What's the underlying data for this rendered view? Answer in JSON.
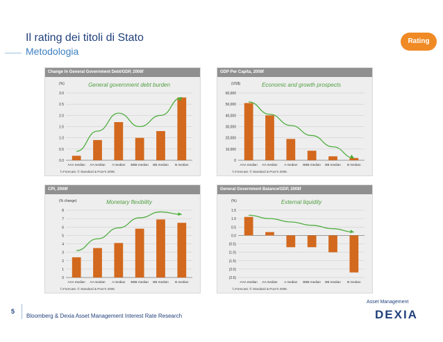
{
  "header": {
    "title": "Il rating dei titoli di Stato",
    "subtitle": "Metodologia",
    "badge": "Rating"
  },
  "footer": {
    "page_number": "5",
    "source": "Bloomberg & Dexia Asset Management Interest Rate Research",
    "logo_top": "Asset Management",
    "logo_main": "DEXIA"
  },
  "colors": {
    "bar": "#d2691e",
    "trend": "#4fae3f",
    "title": "#1f3f7a",
    "accent": "#f08a24"
  },
  "chart_data": [
    {
      "type": "bar",
      "title": "Change In General Government Debt/GDP, 2008f",
      "annotation": "General government debt burden",
      "ylabel": "(%)",
      "categories": [
        "AAA median",
        "AA median",
        "A median",
        "BBB median",
        "BB median",
        "B median"
      ],
      "values": [
        0.2,
        0.9,
        1.7,
        1.0,
        1.3,
        2.8
      ],
      "ylim": [
        0,
        3.0
      ],
      "ticks": [
        0.0,
        0.5,
        1.0,
        1.5,
        2.0,
        2.5,
        3.0
      ],
      "tick_labels": [
        "0.0",
        "0.5",
        "1.0",
        "1.5",
        "2.0",
        "2.5",
        "3.0"
      ],
      "trend": [
        0.4,
        1.3,
        2.1,
        1.5,
        2.0,
        2.8
      ],
      "note": "f=Forecast. © Standard & Poor's 2008."
    },
    {
      "type": "bar",
      "title": "GDP Per Capita, 2008f",
      "annotation": "Economic and growth prospects",
      "ylabel": "(US$)",
      "categories": [
        "AAA median",
        "AA median",
        "A median",
        "BBB median",
        "BB median",
        "B median"
      ],
      "values": [
        51000,
        40000,
        19000,
        8500,
        3500,
        2000
      ],
      "ylim": [
        0,
        60000
      ],
      "ticks": [
        0,
        10000,
        20000,
        30000,
        40000,
        50000,
        60000
      ],
      "tick_labels": [
        "0",
        "10,000",
        "20,000",
        "30,000",
        "40,000",
        "50,000",
        "60,000"
      ],
      "trend": [
        52000,
        41000,
        31000,
        22000,
        12000,
        2000
      ],
      "note": "f=Forecast. © Standard & Poor's 2008."
    },
    {
      "type": "bar",
      "title": "CPI, 2008f",
      "annotation": "Monetary flexibility",
      "ylabel": "(% change)",
      "categories": [
        "AAA median",
        "AA median",
        "A median",
        "BBB median",
        "BB median",
        "B median"
      ],
      "values": [
        2.4,
        3.5,
        4.1,
        5.8,
        6.9,
        6.5
      ],
      "ylim": [
        0,
        8
      ],
      "ticks": [
        0,
        1,
        2,
        3,
        4,
        5,
        6,
        7,
        8
      ],
      "tick_labels": [
        "0",
        "1",
        "2",
        "3",
        "4",
        "5",
        "6",
        "7",
        "8"
      ],
      "trend": [
        3.2,
        4.6,
        5.9,
        7.1,
        7.8,
        7.5
      ],
      "note": "f=Forecast. © Standard & Poor's 2008."
    },
    {
      "type": "bar",
      "title": "General Government Balance/GDP, 2008f",
      "annotation": "External liquidity",
      "ylabel": "(%)",
      "categories": [
        "AAA median",
        "AA median",
        "A median",
        "BBB median",
        "BB median",
        "B median"
      ],
      "values": [
        1.1,
        0.2,
        -0.7,
        -0.7,
        -1.0,
        -2.2
      ],
      "ylim": [
        -2.5,
        1.5
      ],
      "ticks": [
        -2.5,
        -2.0,
        -1.5,
        -1.0,
        -0.5,
        0.0,
        0.5,
        1.0,
        1.5
      ],
      "tick_labels": [
        "(2.5)",
        "(2.0)",
        "(1.5)",
        "(1.0)",
        "(0.5)",
        "0.0",
        "0.5",
        "1.0",
        "1.5"
      ],
      "trend": [
        1.2,
        1.0,
        0.8,
        0.6,
        0.4,
        0.2
      ],
      "note": "f=Forecast. © Standard & Poor's 2008."
    }
  ]
}
